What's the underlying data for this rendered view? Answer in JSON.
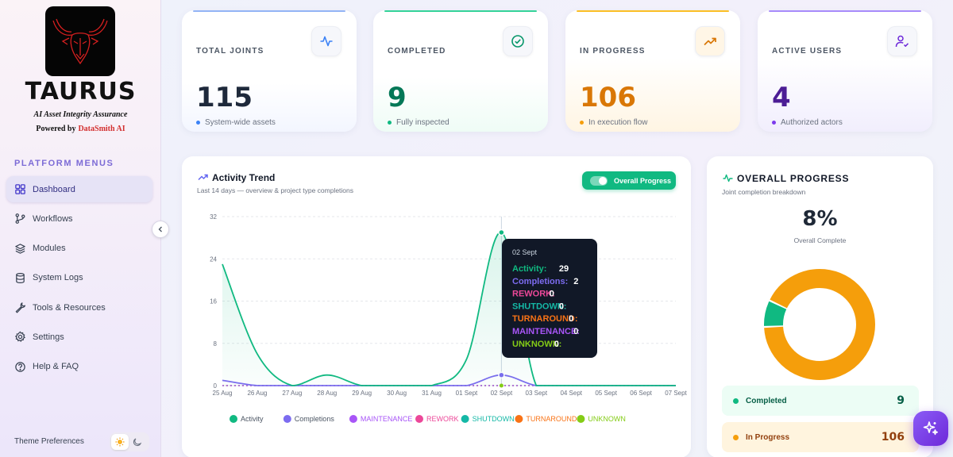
{
  "sidebar": {
    "brand": {
      "name": "TAURUS",
      "tagline": "AI Asset Integrity Assurance",
      "powered_prefix": "Powered by",
      "powered_name": "DataSmith AI"
    },
    "menu_heading": "PLATFORM MENUS",
    "items": [
      {
        "label": "Dashboard",
        "icon": "grid-icon",
        "active": true
      },
      {
        "label": "Workflows",
        "icon": "git-branch-icon"
      },
      {
        "label": "Modules",
        "icon": "layers-icon"
      },
      {
        "label": "System Logs",
        "icon": "database-icon"
      },
      {
        "label": "Tools & Resources",
        "icon": "wrench-icon"
      },
      {
        "label": "Settings",
        "icon": "gear-icon"
      },
      {
        "label": "Help & FAQ",
        "icon": "help-circle-icon"
      }
    ],
    "theme_label": "Theme Preferences",
    "theme_selected": "light"
  },
  "stats": [
    {
      "label": "TOTAL JOINTS",
      "value": "115",
      "desc": "System-wide assets",
      "color": "#1e293b",
      "accent": "#3b82f6",
      "icon": "activity-icon"
    },
    {
      "label": "COMPLETED",
      "value": "9",
      "desc": "Fully inspected",
      "color": "#047857",
      "accent": "#10b981",
      "icon": "check-circle-icon"
    },
    {
      "label": "IN PROGRESS",
      "value": "106",
      "desc": "In execution flow",
      "color": "#d97706",
      "accent": "#f59e0b",
      "icon": "trending-up-icon"
    },
    {
      "label": "ACTIVE USERS",
      "value": "4",
      "desc": "Authorized actors",
      "color": "#4c1d95",
      "accent": "#7c3aed",
      "icon": "user-check-icon"
    }
  ],
  "activity": {
    "title": "Activity Trend",
    "subtitle": "Last 14 days — overview & project type completions",
    "toggle_label": "Overall Progress",
    "tooltip": {
      "date": "02 Sept",
      "rows": [
        {
          "label": "Activity:",
          "value": "29",
          "color": "#10b981"
        },
        {
          "label": "Completions:",
          "value": "2",
          "color": "#7c6cf0"
        },
        {
          "label": "REWORK:",
          "value": "0",
          "color": "#ec4899"
        },
        {
          "label": "SHUTDOWN:",
          "value": "0",
          "color": "#14b8a6"
        },
        {
          "label": "TURNAROUND:",
          "value": "0",
          "color": "#f97316"
        },
        {
          "label": "MAINTENANCE:",
          "value": "0",
          "color": "#a855f7"
        },
        {
          "label": "UNKNOWN:",
          "value": "0",
          "color": "#84cc16"
        }
      ]
    }
  },
  "chart_data": {
    "type": "line",
    "title": "Activity Trend",
    "categories": [
      "25 Aug",
      "26 Aug",
      "27 Aug",
      "28 Aug",
      "29 Aug",
      "30 Aug",
      "31 Aug",
      "01 Sept",
      "02 Sept",
      "03 Sept",
      "04 Sept",
      "05 Sept",
      "06 Sept",
      "07 Sept"
    ],
    "ylim": [
      0,
      32
    ],
    "yticks": [
      "0",
      "8",
      "16",
      "24",
      "32"
    ],
    "grid": true,
    "legend_position": "bottom",
    "series": [
      {
        "name": "Activity",
        "color": "#10b981",
        "values": [
          23,
          6,
          0,
          2,
          0,
          0,
          0,
          5,
          29,
          0,
          0,
          0,
          0,
          0
        ]
      },
      {
        "name": "Completions",
        "color": "#7c6cf0",
        "values": [
          1,
          0,
          0,
          0,
          0,
          0,
          0,
          0,
          2,
          0,
          0,
          0,
          0,
          0
        ]
      },
      {
        "name": "MAINTENANCE",
        "color": "#a855f7",
        "values": [
          0,
          0,
          0,
          0,
          0,
          0,
          0,
          0,
          0,
          0,
          0,
          0,
          0,
          0
        ]
      },
      {
        "name": "REWORK",
        "color": "#ec4899",
        "values": [
          0,
          0,
          0,
          0,
          0,
          0,
          0,
          0,
          0,
          0,
          0,
          0,
          0,
          0
        ]
      },
      {
        "name": "SHUTDOWN",
        "color": "#14b8a6",
        "values": [
          0,
          0,
          0,
          0,
          0,
          0,
          0,
          0,
          0,
          0,
          0,
          0,
          0,
          0
        ]
      },
      {
        "name": "TURNAROUND",
        "color": "#f97316",
        "values": [
          0,
          0,
          0,
          0,
          0,
          0,
          0,
          0,
          0,
          0,
          0,
          0,
          0,
          0
        ]
      },
      {
        "name": "UNKNOWN",
        "color": "#84cc16",
        "values": [
          0,
          0,
          0,
          0,
          0,
          0,
          0,
          0,
          0,
          0,
          0,
          0,
          0,
          0
        ]
      }
    ],
    "highlight_category": "02 Sept"
  },
  "overall": {
    "title": "OVERALL PROGRESS",
    "subtitle": "Joint completion breakdown",
    "percent": "8%",
    "caption": "Overall Complete",
    "donut": [
      {
        "name": "Completed",
        "value": 9,
        "color": "#10b981",
        "bg": "#ecfdf5"
      },
      {
        "name": "In Progress",
        "value": 106,
        "color": "#f59e0b",
        "bg": "#fff7e6"
      }
    ],
    "rows": [
      {
        "label": "Completed",
        "value": "9",
        "color": "#10b981",
        "text": "#065f46",
        "bg": "#ecfdf5"
      },
      {
        "label": "In Progress",
        "value": "106",
        "color": "#f59e0b",
        "text": "#92400e",
        "bg": "#fff4de"
      }
    ]
  }
}
